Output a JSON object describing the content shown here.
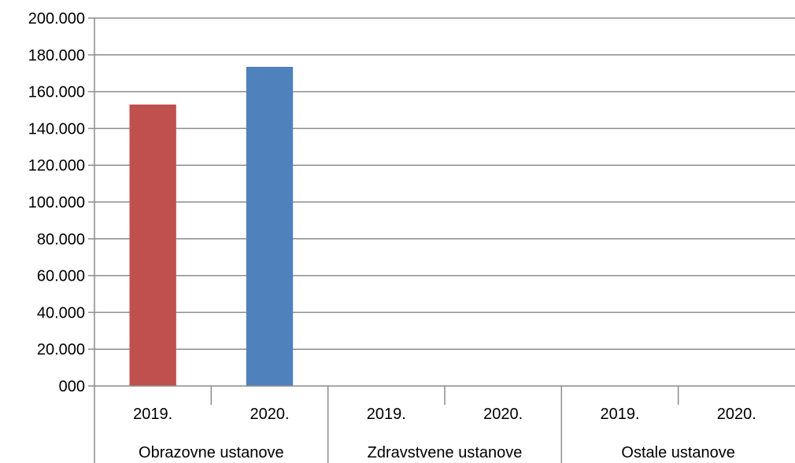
{
  "chart_data": {
    "type": "bar",
    "y_ticks": [
      "000",
      "20.000",
      "40.000",
      "60.000",
      "80.000",
      "100.000",
      "120.000",
      "140.000",
      "160.000",
      "180.000",
      "200.000"
    ],
    "ylim": [
      0,
      200000
    ],
    "grid": true,
    "groups": [
      {
        "label": "Obrazovne ustanove",
        "categories": [
          {
            "label": "2019.",
            "value": 153000,
            "color": "#C0504D"
          },
          {
            "label": "2020.",
            "value": 173500,
            "color": "#4F81BD"
          }
        ]
      },
      {
        "label": "Zdravstvene ustanove",
        "categories": [
          {
            "label": "2019.",
            "value": 0,
            "color": "#C0504D"
          },
          {
            "label": "2020.",
            "value": 0,
            "color": "#4F81BD"
          }
        ]
      },
      {
        "label": "Ostale ustanove",
        "categories": [
          {
            "label": "2019.",
            "value": 0,
            "color": "#C0504D"
          },
          {
            "label": "2020.",
            "value": 0,
            "color": "#4F81BD"
          }
        ]
      }
    ],
    "colors": {
      "grid": "#8C8C8C",
      "axis": "#8C8C8C"
    }
  }
}
